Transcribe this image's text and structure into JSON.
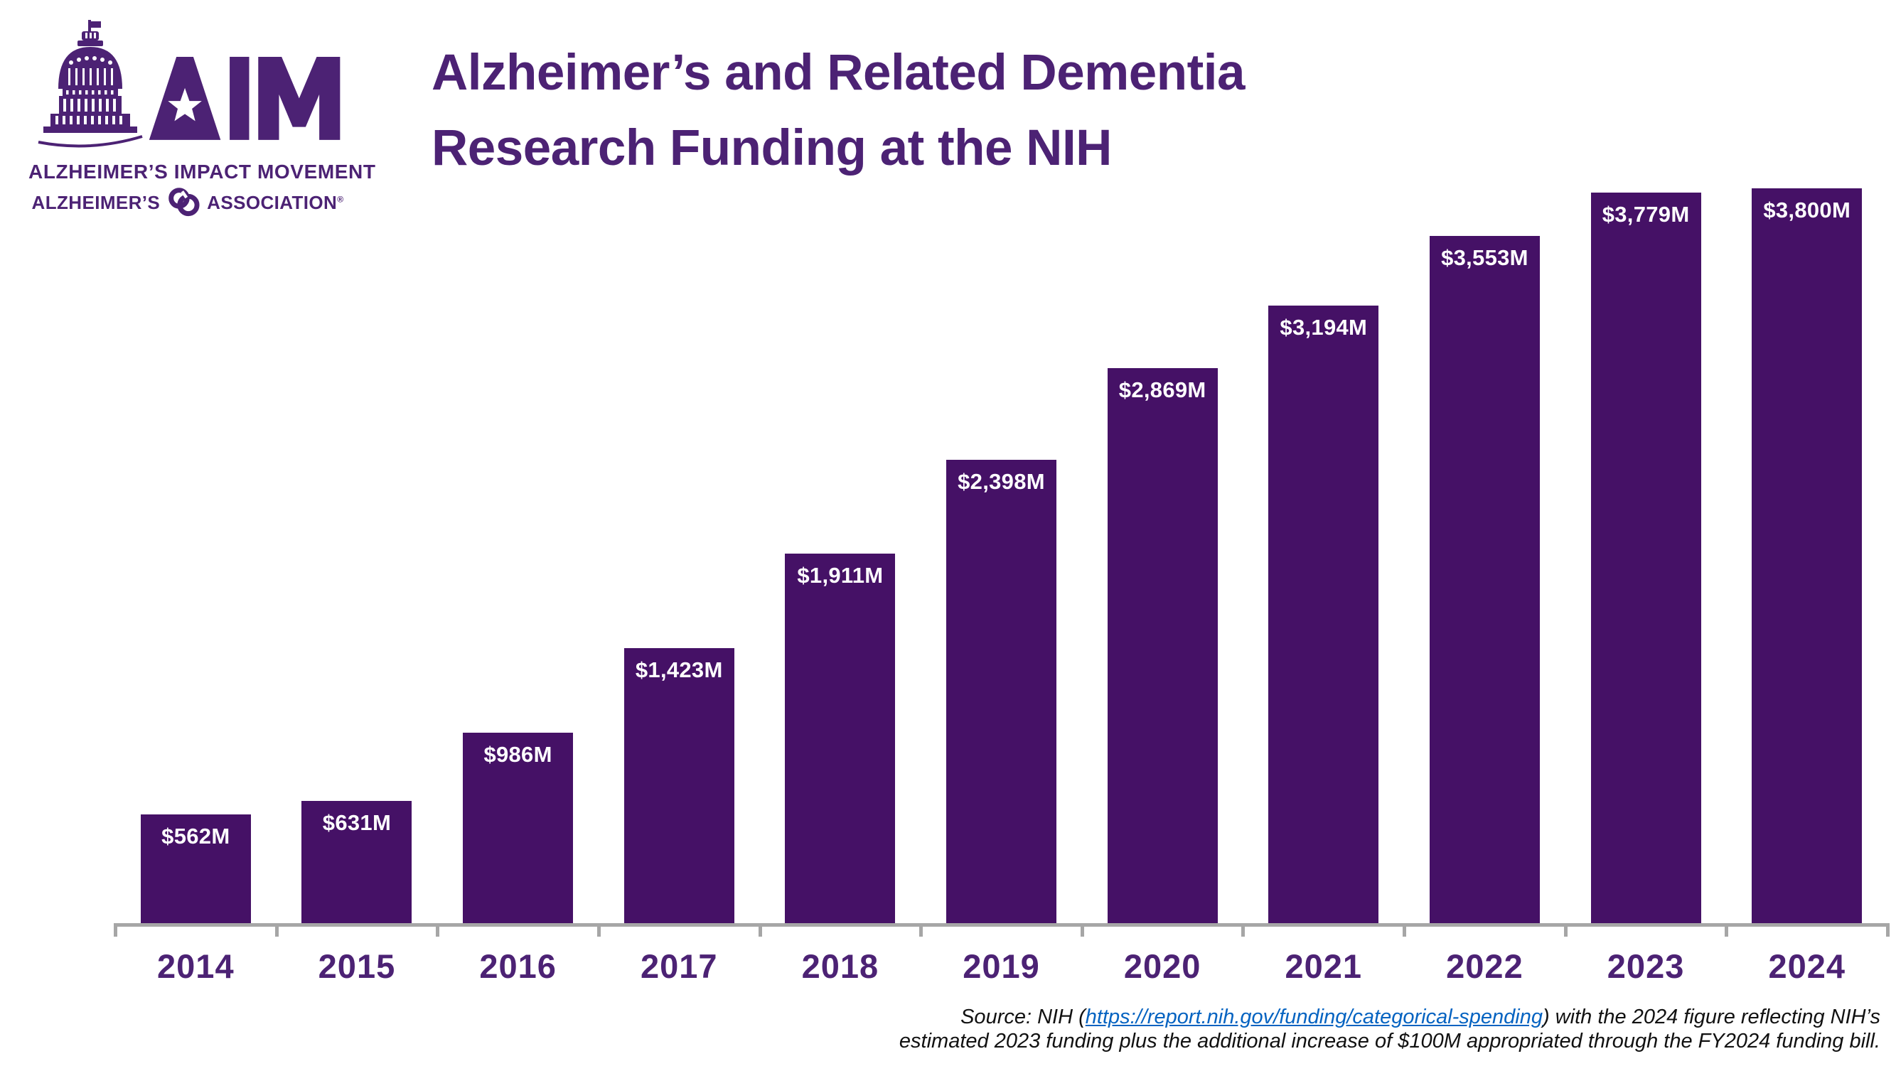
{
  "slide": {
    "background": "#FFFFFF"
  },
  "colors": {
    "brand_purple": "#4C2274",
    "bar_purple": "#451166",
    "axis_gray": "#A6A6A6",
    "value_label": "#FFFFFF",
    "link_blue": "#0563C1",
    "source_text": "#111111"
  },
  "logo": {
    "acronym": "AIM",
    "movement_line": "ALZHEIMER’S IMPACT MOVEMENT",
    "association_left": "ALZHEIMER’S",
    "association_right": "ASSOCIATION",
    "registered_mark": "®",
    "icons": {
      "capitol": "us-capitol-dome-icon",
      "star": "star-cutout-icon",
      "association_mark": "alzheimers-association-mark-icon"
    }
  },
  "title": {
    "line1": "Alzheimer’s and Related Dementia",
    "line2": "Research Funding at the NIH"
  },
  "chart_data": {
    "type": "bar",
    "title": "Alzheimer’s and Related Dementia Research Funding at the NIH",
    "categories": [
      "2014",
      "2015",
      "2016",
      "2017",
      "2018",
      "2019",
      "2020",
      "2021",
      "2022",
      "2023",
      "2024"
    ],
    "values": [
      562,
      631,
      986,
      1423,
      1911,
      2398,
      2869,
      3194,
      3553,
      3779,
      3800
    ],
    "bar_labels": [
      "$562M",
      "$631M",
      "$986M",
      "$1,423M",
      "$1,911M",
      "$2,398M",
      "$2,869M",
      "$3,194M",
      "$3,553M",
      "$3,779M",
      "$3,800M"
    ],
    "xlabel": "",
    "ylabel": "",
    "ylim": [
      0,
      3800
    ],
    "grid": false,
    "legend": false,
    "value_label_position": "inside-top",
    "bar_color": "#451166"
  },
  "source": {
    "prefix": "Source: NIH (",
    "link_text": "https://report.nih.gov/funding/categorical-spending",
    "after_link": ") with the 2024 figure reflecting NIH’s",
    "line2": "estimated 2023 funding plus the additional increase of $100M appropriated through the FY2024 funding bill."
  }
}
